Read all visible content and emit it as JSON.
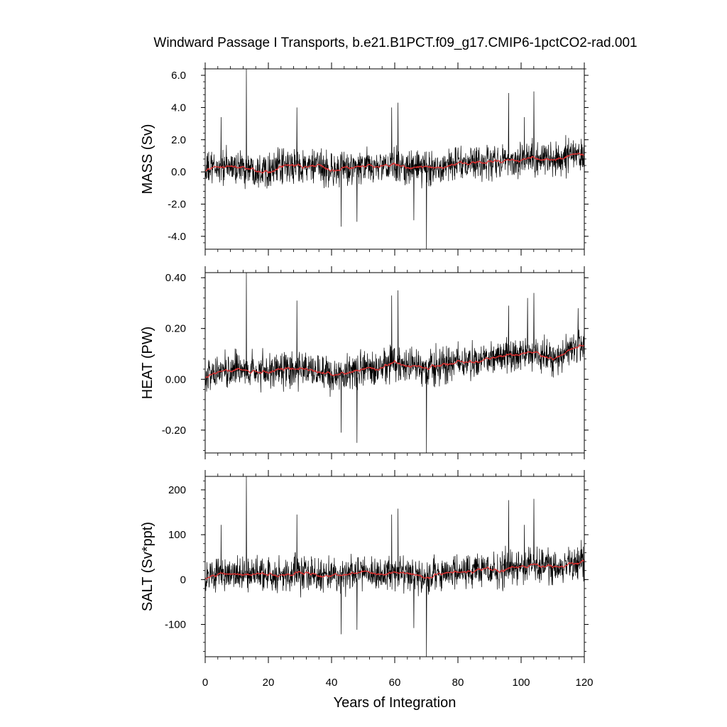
{
  "chart_data": {
    "type": "line",
    "title": "Windward Passage I Transports, b.e21.B1PCT.f09_g17.CMIP6-1pctCO2-rad.001",
    "xlabel": "Years of Integration",
    "xlim": [
      0,
      120
    ],
    "x_ticks": [
      0,
      20,
      40,
      60,
      80,
      100,
      120
    ],
    "x_tick_labels": [
      "0",
      "20",
      "40",
      "60",
      "80",
      "100",
      "120"
    ],
    "colors": {
      "monthly": "#000000",
      "running_mean": "#e03030"
    },
    "panels": [
      {
        "ylabel": "MASS (Sv)",
        "ylim": [
          -4.8,
          6.4
        ],
        "y_ticks": [
          -4.0,
          -2.0,
          0.0,
          2.0,
          4.0,
          6.0
        ],
        "y_tick_labels": [
          "-4.0",
          "-2.0",
          "0.0",
          "2.0",
          "4.0",
          "6.0"
        ],
        "mean_by_year": {
          "x": [
            0,
            5,
            10,
            15,
            20,
            25,
            30,
            35,
            40,
            45,
            50,
            55,
            60,
            65,
            70,
            75,
            80,
            85,
            90,
            95,
            100,
            105,
            110,
            115,
            120
          ],
          "y": [
            0.1,
            0.3,
            0.3,
            0.2,
            0.2,
            0.3,
            0.4,
            0.3,
            0.1,
            0.2,
            0.3,
            0.3,
            0.4,
            0.3,
            0.2,
            0.4,
            0.5,
            0.5,
            0.6,
            0.7,
            0.8,
            0.9,
            0.7,
            1.0,
            1.1
          ]
        },
        "spikes": [
          {
            "x": 13,
            "y": 6.4
          },
          {
            "x": 70,
            "y": -4.8
          },
          {
            "x": 43,
            "y": -3.4
          },
          {
            "x": 48,
            "y": -3.1
          },
          {
            "x": 59,
            "y": 4.0
          },
          {
            "x": 61,
            "y": 4.3
          },
          {
            "x": 96,
            "y": 4.9
          },
          {
            "x": 104,
            "y": 5.0
          },
          {
            "x": 5,
            "y": 3.4
          },
          {
            "x": 29,
            "y": 4.0
          },
          {
            "x": 101,
            "y": 3.4
          },
          {
            "x": 66,
            "y": -3.0
          }
        ]
      },
      {
        "ylabel": "HEAT (PW)",
        "ylim": [
          -0.29,
          0.42
        ],
        "y_ticks": [
          -0.2,
          0.0,
          0.2,
          0.4
        ],
        "y_tick_labels": [
          "-0.20",
          "0.00",
          "0.20",
          "0.40"
        ],
        "mean_by_year": {
          "x": [
            0,
            5,
            10,
            15,
            20,
            25,
            30,
            35,
            40,
            45,
            50,
            55,
            60,
            65,
            70,
            75,
            80,
            85,
            90,
            95,
            100,
            105,
            110,
            115,
            120
          ],
          "y": [
            0.01,
            0.03,
            0.04,
            0.03,
            0.02,
            0.03,
            0.04,
            0.03,
            0.02,
            0.03,
            0.04,
            0.04,
            0.06,
            0.05,
            0.04,
            0.06,
            0.07,
            0.07,
            0.08,
            0.09,
            0.1,
            0.11,
            0.08,
            0.12,
            0.13
          ]
        },
        "spikes": [
          {
            "x": 13,
            "y": 0.42
          },
          {
            "x": 70,
            "y": -0.29
          },
          {
            "x": 48,
            "y": -0.25
          },
          {
            "x": 43,
            "y": -0.21
          },
          {
            "x": 59,
            "y": 0.33
          },
          {
            "x": 61,
            "y": 0.35
          },
          {
            "x": 104,
            "y": 0.34
          },
          {
            "x": 102,
            "y": 0.32
          },
          {
            "x": 96,
            "y": 0.29
          },
          {
            "x": 29,
            "y": 0.31
          },
          {
            "x": 118,
            "y": 0.28
          }
        ]
      },
      {
        "ylabel": "SALT (Sv*ppt)",
        "ylim": [
          -172,
          230
        ],
        "y_ticks": [
          -100,
          0,
          100,
          200
        ],
        "y_tick_labels": [
          "-100",
          "0",
          "100",
          "200"
        ],
        "mean_by_year": {
          "x": [
            0,
            5,
            10,
            15,
            20,
            25,
            30,
            35,
            40,
            45,
            50,
            55,
            60,
            65,
            70,
            75,
            80,
            85,
            90,
            95,
            100,
            105,
            110,
            115,
            120
          ],
          "y": [
            4,
            11,
            11,
            8,
            7,
            11,
            14,
            11,
            4,
            8,
            11,
            11,
            14,
            11,
            7,
            14,
            18,
            18,
            22,
            25,
            29,
            32,
            25,
            36,
            40
          ]
        },
        "spikes": [
          {
            "x": 13,
            "y": 230
          },
          {
            "x": 70,
            "y": -172
          },
          {
            "x": 43,
            "y": -122
          },
          {
            "x": 48,
            "y": -112
          },
          {
            "x": 59,
            "y": 145
          },
          {
            "x": 61,
            "y": 158
          },
          {
            "x": 96,
            "y": 177
          },
          {
            "x": 104,
            "y": 180
          },
          {
            "x": 5,
            "y": 122
          },
          {
            "x": 29,
            "y": 145
          },
          {
            "x": 101,
            "y": 122
          },
          {
            "x": 66,
            "y": -108
          }
        ]
      }
    ]
  }
}
